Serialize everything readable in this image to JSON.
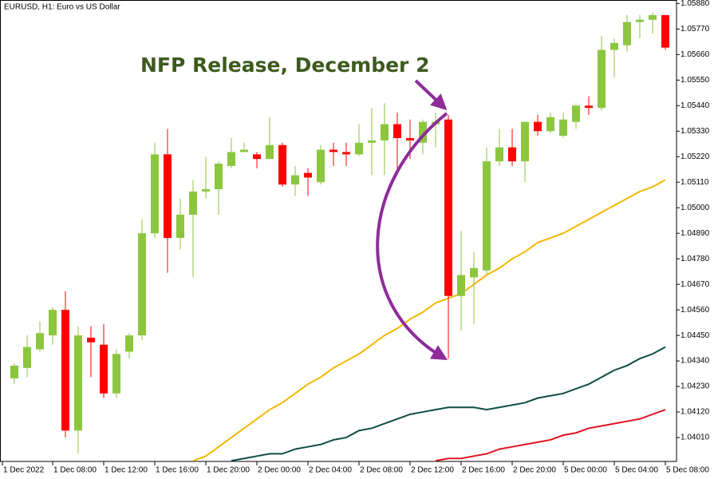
{
  "chart_data": {
    "type": "candlestick",
    "title": "EURUSD, H1:  Euro vs US Dollar",
    "annotation": "NFP Release, December 2",
    "categories": [
      "1 Dec 2022",
      null,
      null,
      "1 Dec 08:00",
      null,
      null,
      null,
      "1 Dec 12:00",
      null,
      null,
      null,
      "1 Dec 16:00",
      null,
      null,
      null,
      "1 Dec 20:00",
      null,
      null,
      null,
      "2 Dec 00:00",
      null,
      null,
      null,
      "2 Dec 04:00",
      null,
      null,
      null,
      "2 Dec 08:00",
      null,
      null,
      null,
      "2 Dec 12:00",
      null,
      null,
      null,
      "2 Dec 16:00",
      null,
      null,
      null,
      "2 Dec 20:00",
      null,
      null,
      null,
      "5 Dec 00:00",
      null,
      null,
      null,
      "5 Dec 04:00",
      null,
      null,
      null,
      "5 Dec 08:00"
    ],
    "open": [
      1.04265,
      1.0431,
      1.0439,
      1.0445,
      1.0456,
      1.0404,
      1.0444,
      1.0441,
      1.042,
      1.0438,
      1.0445,
      1.0489,
      1.0523,
      1.0487,
      1.0497,
      1.0507,
      1.0508,
      1.0518,
      1.0524,
      1.0523,
      1.0521,
      1.0527,
      1.051,
      1.0515,
      1.0511,
      1.0525,
      1.0524,
      1.0523,
      1.0528,
      1.0529,
      1.0536,
      1.053,
      1.0528,
      1.0536,
      1.0538,
      1.0462,
      1.047,
      1.0473,
      1.052,
      1.0526,
      1.052,
      1.0537,
      1.0533,
      1.0531,
      1.0537,
      1.0544,
      1.0543,
      1.0568,
      1.057,
      1.058,
      1.0581,
      1.0583
    ],
    "high": [
      1.0433,
      1.0445,
      1.0451,
      1.0457,
      1.0464,
      1.0449,
      1.0449,
      1.045,
      1.0439,
      1.0446,
      1.0495,
      1.0528,
      1.0534,
      1.0504,
      1.0512,
      1.0522,
      1.052,
      1.053,
      1.0528,
      1.0524,
      1.0539,
      1.0528,
      1.0518,
      1.0517,
      1.0527,
      1.0528,
      1.0528,
      1.0536,
      1.0543,
      1.0545,
      1.0541,
      1.0538,
      1.0538,
      1.0541,
      1.054,
      1.049,
      1.0481,
      1.0526,
      1.0534,
      1.0534,
      1.0537,
      1.054,
      1.0541,
      1.0541,
      1.0545,
      1.0548,
      1.0574,
      1.0573,
      1.0583,
      1.0583,
      1.0584,
      1.0583
    ],
    "low": [
      1.0424,
      1.0427,
      1.0438,
      1.0441,
      1.0401,
      1.0394,
      1.0427,
      1.0418,
      1.0418,
      1.0435,
      1.0443,
      1.0487,
      1.0472,
      1.0482,
      1.047,
      1.0504,
      1.0497,
      1.0517,
      1.0524,
      1.0517,
      1.0521,
      1.0509,
      1.0505,
      1.0505,
      1.051,
      1.0518,
      1.0518,
      1.0522,
      1.0514,
      1.0514,
      1.0514,
      1.0521,
      1.0523,
      1.0526,
      1.0435,
      1.0447,
      1.045,
      1.0471,
      1.0518,
      1.0518,
      1.0511,
      1.0531,
      1.0532,
      1.053,
      1.0534,
      1.054,
      1.0542,
      1.0556,
      1.0567,
      1.0573,
      1.0575,
      1.0568
    ],
    "close": [
      1.0432,
      1.044,
      1.0446,
      1.0456,
      1.0404,
      1.0445,
      1.0442,
      1.042,
      1.0437,
      1.0445,
      1.0489,
      1.0523,
      1.0487,
      1.0497,
      1.0507,
      1.0508,
      1.0519,
      1.0524,
      1.0525,
      1.0521,
      1.0527,
      1.051,
      1.0514,
      1.0513,
      1.0525,
      1.0524,
      1.0523,
      1.0528,
      1.0529,
      1.0536,
      1.053,
      1.0529,
      1.0537,
      1.0537,
      1.0462,
      1.0471,
      1.0474,
      1.052,
      1.0526,
      1.052,
      1.0537,
      1.0533,
      1.0539,
      1.0538,
      1.0544,
      1.0543,
      1.0568,
      1.0571,
      1.058,
      1.0581,
      1.0583,
      1.0569
    ],
    "up_color": "#8cc63f",
    "down_color": "#ff0000",
    "series": [
      {
        "color": "#f5b800",
        "values": [
          null,
          null,
          null,
          null,
          null,
          null,
          null,
          null,
          null,
          null,
          null,
          null,
          null,
          null,
          1.0391,
          1.0393,
          1.0397,
          1.0401,
          1.0405,
          1.0409,
          1.0413,
          1.0416,
          1.042,
          1.0424,
          1.0427,
          1.0431,
          1.0434,
          1.0437,
          1.0441,
          1.0445,
          1.0448,
          1.0452,
          1.0455,
          1.0459,
          1.0461,
          1.0463,
          1.0467,
          1.0471,
          1.0474,
          1.0478,
          1.0481,
          1.0485,
          1.0487,
          1.0489,
          1.0492,
          1.0495,
          1.0498,
          1.0501,
          1.0504,
          1.0507,
          1.0509,
          1.0512
        ]
      },
      {
        "color": "#0f4d45",
        "values": [
          null,
          null,
          null,
          null,
          null,
          null,
          null,
          null,
          null,
          null,
          null,
          null,
          null,
          null,
          null,
          null,
          null,
          1.0391,
          1.0392,
          1.0393,
          1.0394,
          1.0394,
          1.0396,
          1.0397,
          1.0398,
          1.04,
          1.0401,
          1.0404,
          1.0405,
          1.0407,
          1.0409,
          1.0411,
          1.0412,
          1.0413,
          1.0414,
          1.0414,
          1.0414,
          1.0413,
          1.0414,
          1.0415,
          1.0416,
          1.0418,
          1.0419,
          1.042,
          1.0422,
          1.0424,
          1.0427,
          1.043,
          1.0432,
          1.0435,
          1.0437,
          1.044
        ]
      },
      {
        "color": "#e0141e",
        "values": [
          null,
          null,
          null,
          null,
          null,
          null,
          null,
          null,
          null,
          null,
          null,
          null,
          null,
          null,
          null,
          null,
          null,
          null,
          null,
          null,
          null,
          null,
          null,
          null,
          null,
          null,
          null,
          null,
          null,
          null,
          null,
          null,
          null,
          1.0391,
          1.0392,
          1.0392,
          1.0393,
          1.0394,
          1.0396,
          1.0397,
          1.0398,
          1.0399,
          1.04,
          1.0402,
          1.0403,
          1.0405,
          1.0406,
          1.0407,
          1.0408,
          1.0409,
          1.0411,
          1.0413
        ]
      }
    ],
    "ylim": [
      1.03907,
      1.05895
    ],
    "yticks": [
      {
        "value": 1.0588,
        "label": "1.05880"
      },
      {
        "value": 1.0577,
        "label": "1.05770"
      },
      {
        "value": 1.0566,
        "label": "1.05660"
      },
      {
        "value": 1.0555,
        "label": "1.05550"
      },
      {
        "value": 1.0544,
        "label": "1.05440"
      },
      {
        "value": 1.0533,
        "label": "1.05330"
      },
      {
        "value": 1.0522,
        "label": "1.05220"
      },
      {
        "value": 1.0511,
        "label": "1.05110"
      },
      {
        "value": 1.05,
        "label": "1.05000"
      },
      {
        "value": 1.0489,
        "label": "1.04890"
      },
      {
        "value": 1.0478,
        "label": "1.04780"
      },
      {
        "value": 1.0467,
        "label": "1.04670"
      },
      {
        "value": 1.0456,
        "label": "1.04560"
      },
      {
        "value": 1.0445,
        "label": "1.04450"
      },
      {
        "value": 1.0434,
        "label": "1.04340"
      },
      {
        "value": 1.0423,
        "label": "1.04230"
      },
      {
        "value": 1.0412,
        "label": "1.04120"
      },
      {
        "value": 1.0401,
        "label": "1.04010"
      }
    ],
    "grid": false
  }
}
